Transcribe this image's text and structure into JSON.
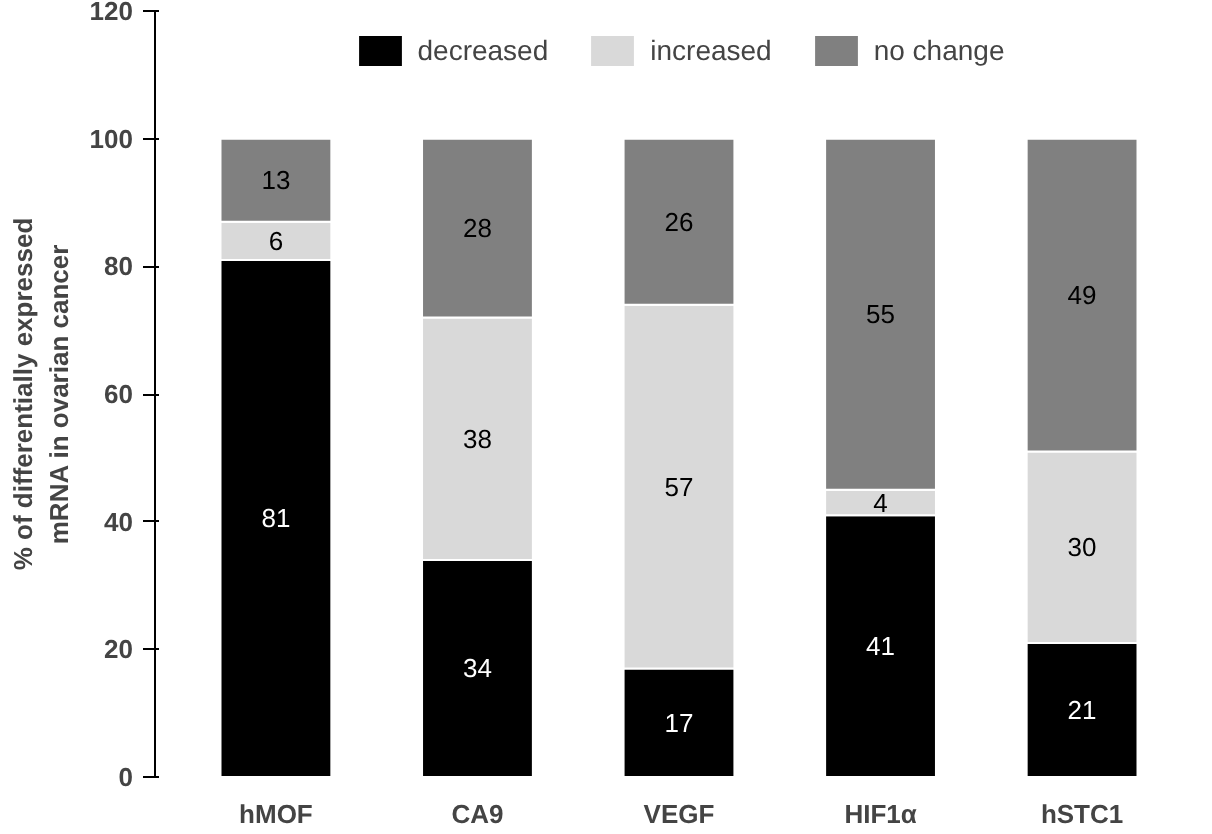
{
  "chart_data": {
    "type": "bar",
    "stacked": true,
    "ylabel": "% of differentially expressed\nmRNA in ovarian cancer",
    "categories": [
      "hMOF",
      "CA9",
      "VEGF",
      "HIF1α",
      "hSTC1"
    ],
    "series": [
      {
        "name": "decreased",
        "color": "#000000",
        "values": [
          81,
          34,
          17,
          41,
          21
        ]
      },
      {
        "name": "increased",
        "color": "#d9d9d9",
        "values": [
          6,
          38,
          57,
          4,
          30
        ]
      },
      {
        "name": "no change",
        "color": "#808080",
        "values": [
          13,
          28,
          26,
          55,
          49
        ]
      }
    ],
    "ylim": [
      0,
      120
    ],
    "yticks": [
      0,
      20,
      40,
      60,
      80,
      100,
      120
    ],
    "grid": false,
    "legend": "top",
    "data_labels": true
  }
}
